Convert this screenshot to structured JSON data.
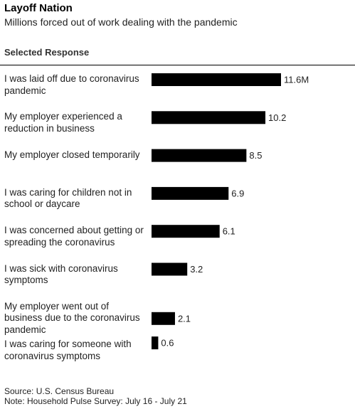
{
  "header": {
    "title": "Layoff Nation",
    "subtitle": "Millions forced out of work dealing with the pandemic",
    "column_label": "Selected Response"
  },
  "chart_data": {
    "type": "bar",
    "orientation": "horizontal",
    "title": "Layoff Nation",
    "subtitle": "Millions forced out of work dealing with the pandemic",
    "categories": [
      "I was laid off due to coronavirus pandemic",
      "My employer experienced a reduction in business",
      "My employer closed temporarily",
      "I was caring for children not in school or daycare",
      "I was concerned about getting or spreading the coronavirus",
      "I was sick with coronavirus symptoms",
      "My employer went out of business due to the coronavirus pandemic",
      "I was caring for someone with coronavirus symptoms"
    ],
    "values": [
      11.6,
      10.2,
      8.5,
      6.9,
      6.1,
      3.2,
      2.1,
      0.6
    ],
    "value_labels": [
      "11.6M",
      "10.2",
      "8.5",
      "6.9",
      "6.1",
      "3.2",
      "2.1",
      "0.6"
    ],
    "bar_color": "#000000",
    "xlim": [
      0,
      11.6
    ],
    "grid": false
  },
  "footer": {
    "source": "Source: U.S. Census Bureau",
    "note": "Note: Household Pulse Survey: July 16 - July 21"
  }
}
